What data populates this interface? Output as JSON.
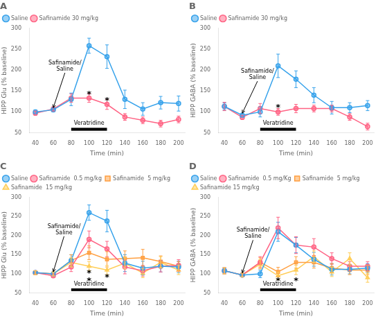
{
  "chart_data": [
    {
      "type": "line",
      "title": "A",
      "x_label": "Time (min)",
      "y_label": "HIPP Glu (% baseline)",
      "x": [
        40,
        60,
        80,
        100,
        120,
        140,
        160,
        180,
        200
      ],
      "xlim": [
        33,
        207
      ],
      "xticks": [
        40,
        60,
        80,
        100,
        120,
        140,
        160,
        180,
        200
      ],
      "ylim": [
        50,
        300
      ],
      "yticks": [
        50,
        100,
        150,
        200,
        250,
        300
      ],
      "grid": false,
      "legend": "upper left",
      "series": [
        {
          "name": "Saline",
          "marker": "circle",
          "values": [
            100,
            105,
            130,
            258,
            232,
            130,
            107,
            122,
            120
          ],
          "errors": [
            5,
            5,
            15,
            18,
            28,
            22,
            15,
            15,
            18
          ]
        },
        {
          "name": "Safinamide 30 mg/kg",
          "marker": "circle",
          "values": [
            97,
            107,
            133,
            133,
            118,
            88,
            80,
            72,
            82
          ],
          "errors": [
            5,
            5,
            10,
            10,
            12,
            8,
            8,
            8,
            8
          ]
        }
      ],
      "annotations": [
        {
          "text": "Veratridine",
          "x": [
            80,
            120
          ],
          "y": [
            55,
            62
          ]
        },
        {
          "text": "Safinamide/\nSaline",
          "x": 60,
          "y": 105,
          "text_x": 73,
          "text_y": 195
        },
        {
          "text": "*",
          "x": 100,
          "y": 143
        },
        {
          "text": "*",
          "x": 120,
          "y": 128
        }
      ]
    },
    {
      "type": "line",
      "title": "B",
      "x_label": "Time (min)",
      "y_label": "HIPP GABA (% baseline)",
      "x": [
        40,
        60,
        80,
        100,
        120,
        140,
        160,
        180,
        200
      ],
      "xlim": [
        33,
        207
      ],
      "xticks": [
        40,
        60,
        80,
        100,
        120,
        140,
        160,
        180,
        200
      ],
      "ylim": [
        50,
        300
      ],
      "yticks": [
        50,
        100,
        150,
        200,
        250,
        300
      ],
      "grid": false,
      "legend": "upper left",
      "series": [
        {
          "name": "Saline",
          "marker": "circle",
          "values": [
            113,
            92,
            100,
            210,
            178,
            140,
            110,
            110,
            115
          ],
          "errors": [
            8,
            5,
            12,
            28,
            20,
            18,
            15,
            12,
            12
          ]
        },
        {
          "name": "Safinamide 30 mg/kg",
          "marker": "circle",
          "values": [
            113,
            87,
            108,
            100,
            108,
            108,
            108,
            88,
            65
          ],
          "errors": [
            10,
            5,
            12,
            8,
            10,
            8,
            8,
            8,
            8
          ]
        }
      ],
      "annotations": [
        {
          "text": "Veratridine",
          "x": [
            80,
            120
          ],
          "y": [
            55,
            62
          ]
        },
        {
          "text": "Safinamide/\nSaline",
          "x": 60,
          "y": 92,
          "text_x": 77,
          "text_y": 175
        },
        {
          "text": "*",
          "x": 100,
          "y": 112
        }
      ]
    },
    {
      "type": "line",
      "title": "C",
      "x_label": "Time (min)",
      "y_label": "HIPP Glu (% baseline)",
      "x": [
        40,
        60,
        80,
        100,
        120,
        140,
        160,
        180,
        200
      ],
      "xlim": [
        33,
        207
      ],
      "xticks": [
        40,
        60,
        80,
        100,
        120,
        140,
        160,
        180,
        200
      ],
      "ylim": [
        50,
        300
      ],
      "yticks": [
        50,
        100,
        150,
        200,
        250,
        300
      ],
      "grid": false,
      "legend": "upper left",
      "series": [
        {
          "name": "Saline",
          "marker": "circle",
          "values": [
            103,
            100,
            135,
            260,
            238,
            128,
            115,
            120,
            118
          ],
          "errors": [
            5,
            5,
            15,
            20,
            28,
            22,
            18,
            15,
            15
          ]
        },
        {
          "name": "Safinamide  0.5 mg/kg",
          "marker": "circle",
          "values": [
            103,
            95,
            118,
            190,
            165,
            118,
            108,
            120,
            122
          ],
          "errors": [
            5,
            5,
            12,
            22,
            20,
            18,
            14,
            15,
            15
          ]
        },
        {
          "name": "Safinamide  5 mg/kg",
          "marker": "square",
          "values": [
            103,
            100,
            135,
            155,
            138,
            140,
            142,
            132,
            120
          ],
          "errors": [
            5,
            5,
            15,
            18,
            20,
            20,
            22,
            15,
            12
          ]
        },
        {
          "name": "Safinamide  15 mg/kg",
          "marker": "triangle",
          "values": [
            103,
            100,
            130,
            120,
            110,
            128,
            102,
            130,
            110
          ],
          "errors": [
            5,
            5,
            12,
            12,
            12,
            15,
            12,
            15,
            12
          ]
        }
      ],
      "annotations": [
        {
          "text": "Veratridine",
          "x": [
            80,
            120
          ],
          "y": [
            55,
            62
          ]
        },
        {
          "text": "Safinamide/\nSaline",
          "x": 60,
          "y": 100,
          "text_x": 72,
          "text_y": 200
        },
        {
          "text": "*",
          "x": 100,
          "y": 104
        },
        {
          "text": "*",
          "x": 100,
          "y": 84
        },
        {
          "text": "*",
          "x": 120,
          "y": 92
        }
      ]
    },
    {
      "type": "line",
      "title": "D",
      "x_label": "Time (min)",
      "y_label": "HIPP GABA (% baseline)",
      "x": [
        40,
        60,
        80,
        100,
        120,
        140,
        160,
        180,
        200
      ],
      "xlim": [
        33,
        207
      ],
      "xticks": [
        40,
        60,
        80,
        100,
        120,
        140,
        160,
        180,
        200
      ],
      "ylim": [
        50,
        300
      ],
      "yticks": [
        50,
        100,
        150,
        200,
        250,
        300
      ],
      "grid": false,
      "legend": "upper left",
      "series": [
        {
          "name": "Saline",
          "marker": "circle",
          "values": [
            108,
            97,
            100,
            210,
            175,
            138,
            112,
            112,
            115
          ],
          "errors": [
            8,
            5,
            10,
            25,
            20,
            18,
            15,
            12,
            12
          ]
        },
        {
          "name": "Safinamide  0.5 mg/Kg",
          "marker": "circle",
          "values": [
            108,
            97,
            130,
            220,
            175,
            170,
            140,
            120,
            120
          ],
          "errors": [
            8,
            5,
            15,
            28,
            22,
            22,
            15,
            12,
            12
          ]
        },
        {
          "name": "Safinamide  5 mg/kg",
          "marker": "square",
          "values": [
            108,
            97,
            130,
            105,
            130,
            130,
            115,
            110,
            110
          ],
          "errors": [
            8,
            5,
            12,
            12,
            15,
            15,
            12,
            12,
            12
          ]
        },
        {
          "name": "Safinamide 15 mg/kg",
          "marker": "triangle",
          "values": [
            108,
            97,
            125,
            95,
            110,
            145,
            105,
            140,
            90
          ],
          "errors": [
            8,
            5,
            12,
            10,
            12,
            15,
            12,
            15,
            12
          ]
        }
      ],
      "annotations": [
        {
          "text": "Veratridine",
          "x": [
            80,
            120
          ],
          "y": [
            55,
            62
          ]
        },
        {
          "text": "Safinamide/\nSaline",
          "x": 60,
          "y": 97,
          "text_x": 72,
          "text_y": 190
        },
        {
          "text": "*",
          "x": 100,
          "y": 83
        },
        {
          "text": "*",
          "x": 120,
          "y": 83
        }
      ]
    }
  ]
}
